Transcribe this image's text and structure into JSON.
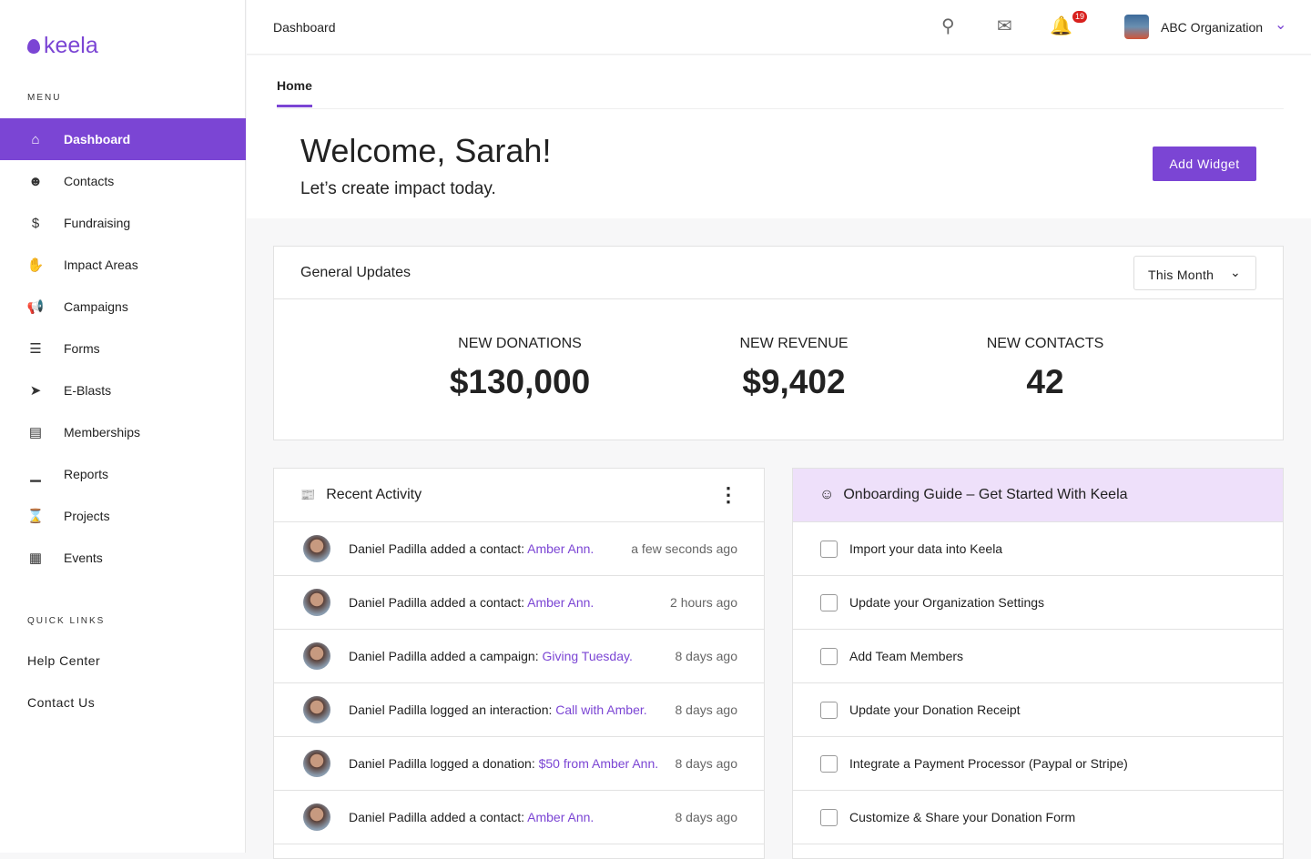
{
  "brand": {
    "name": "keela",
    "accent": "#7b45d4"
  },
  "sidebar": {
    "menu_label": "MENU",
    "items": [
      {
        "label": "Dashboard",
        "icon": "home-icon",
        "active": true
      },
      {
        "label": "Contacts",
        "icon": "user-icon"
      },
      {
        "label": "Fundraising",
        "icon": "money-bag-icon"
      },
      {
        "label": "Impact Areas",
        "icon": "hand-icon"
      },
      {
        "label": "Campaigns",
        "icon": "megaphone-icon"
      },
      {
        "label": "Forms",
        "icon": "list-icon"
      },
      {
        "label": "E-Blasts",
        "icon": "paper-plane-icon"
      },
      {
        "label": "Memberships",
        "icon": "id-card-icon"
      },
      {
        "label": "Reports",
        "icon": "bar-chart-icon"
      },
      {
        "label": "Projects",
        "icon": "hourglass-icon"
      },
      {
        "label": "Events",
        "icon": "calendar-icon"
      }
    ],
    "quick_links_label": "QUICK LINKS",
    "quick_links": [
      "Help Center",
      "Contact Us"
    ]
  },
  "topbar": {
    "title": "Dashboard",
    "notifications": "19",
    "org": "ABC Organization"
  },
  "hero": {
    "tab": "Home",
    "welcome": "Welcome, Sarah!",
    "subtitle": "Let’s create impact today.",
    "add_widget": "Add Widget"
  },
  "general": {
    "title": "General Updates",
    "period": "This Month",
    "stats": [
      {
        "label": "NEW DONATIONS",
        "value": "$130,000"
      },
      {
        "label": "NEW REVENUE",
        "value": "$9,402"
      },
      {
        "label": "NEW CONTACTS",
        "value": "42"
      }
    ]
  },
  "activity": {
    "title": "Recent Activity",
    "items": [
      {
        "text": "Daniel Padilla added a contact: ",
        "link": "Amber Ann.",
        "time": "a few seconds ago"
      },
      {
        "text": "Daniel Padilla added a contact: ",
        "link": "Amber Ann.",
        "time": "2 hours ago"
      },
      {
        "text": "Daniel Padilla added a campaign: ",
        "link": "Giving Tuesday.",
        "time": "8 days ago"
      },
      {
        "text": "Daniel Padilla logged an interaction: ",
        "link": "Call with Amber.",
        "time": "8 days ago"
      },
      {
        "text": "Daniel Padilla logged a donation: ",
        "link": "$50 from Amber Ann.",
        "time": "8 days ago"
      },
      {
        "text": "Daniel Padilla added a contact: ",
        "link": "Amber Ann.",
        "time": "8 days ago"
      }
    ]
  },
  "onboarding": {
    "title": "Onboarding Guide – Get Started With Keela",
    "items": [
      "Import your data into Keela",
      "Update your Organization Settings",
      "Add Team Members",
      "Update your Donation Receipt",
      "Integrate a Payment Processor (Paypal or Stripe)",
      "Customize & Share your Donation Form"
    ]
  }
}
